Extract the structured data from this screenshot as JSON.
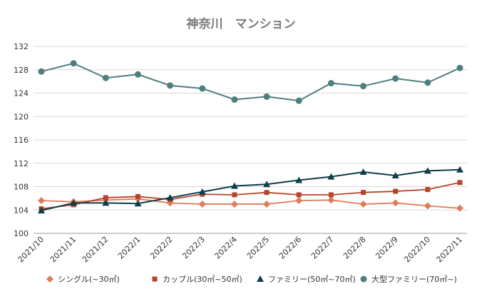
{
  "chart_data": {
    "type": "line",
    "title": "神奈川　マンション",
    "xlabel": "",
    "ylabel": "",
    "categories": [
      "2021/10",
      "2021/11",
      "2021/12",
      "2022/1",
      "2022/2",
      "2022/3",
      "2022/4",
      "2022/5",
      "2022/6",
      "2022/7",
      "2022/8",
      "2022/9",
      "2022/10",
      "2022/11"
    ],
    "ylim": [
      100,
      132
    ],
    "yticks": [
      100,
      104,
      108,
      112,
      116,
      120,
      124,
      128,
      132
    ],
    "grid": true,
    "legend_position": "bottom",
    "series": [
      {
        "name": "シングル(~30㎡)",
        "color": "#e07b5a",
        "marker": "diamond",
        "values": [
          105.6,
          105.4,
          105.7,
          105.9,
          105.2,
          105.0,
          105.0,
          105.0,
          105.6,
          105.7,
          105.0,
          105.2,
          104.7,
          104.3
        ]
      },
      {
        "name": "カップル(30㎡~50㎡)",
        "color": "#b5452a",
        "marker": "square",
        "values": [
          104.2,
          104.9,
          106.1,
          106.3,
          105.8,
          106.7,
          106.6,
          107.0,
          106.6,
          106.6,
          107.0,
          107.2,
          107.5,
          108.7
        ]
      },
      {
        "name": "ファミリー(50㎡~70㎡)",
        "color": "#0e3d4a",
        "marker": "triangle",
        "values": [
          103.9,
          105.2,
          105.2,
          105.1,
          106.1,
          107.1,
          108.1,
          108.4,
          109.1,
          109.7,
          110.5,
          109.9,
          110.7,
          110.9
        ]
      },
      {
        "name": "大型ファミリー(70㎡~)",
        "color": "#4d7f7e",
        "marker": "circle",
        "values": [
          127.7,
          129.1,
          126.6,
          127.2,
          125.3,
          124.8,
          122.9,
          123.4,
          122.7,
          125.7,
          125.2,
          126.5,
          125.8,
          128.3
        ]
      }
    ]
  }
}
